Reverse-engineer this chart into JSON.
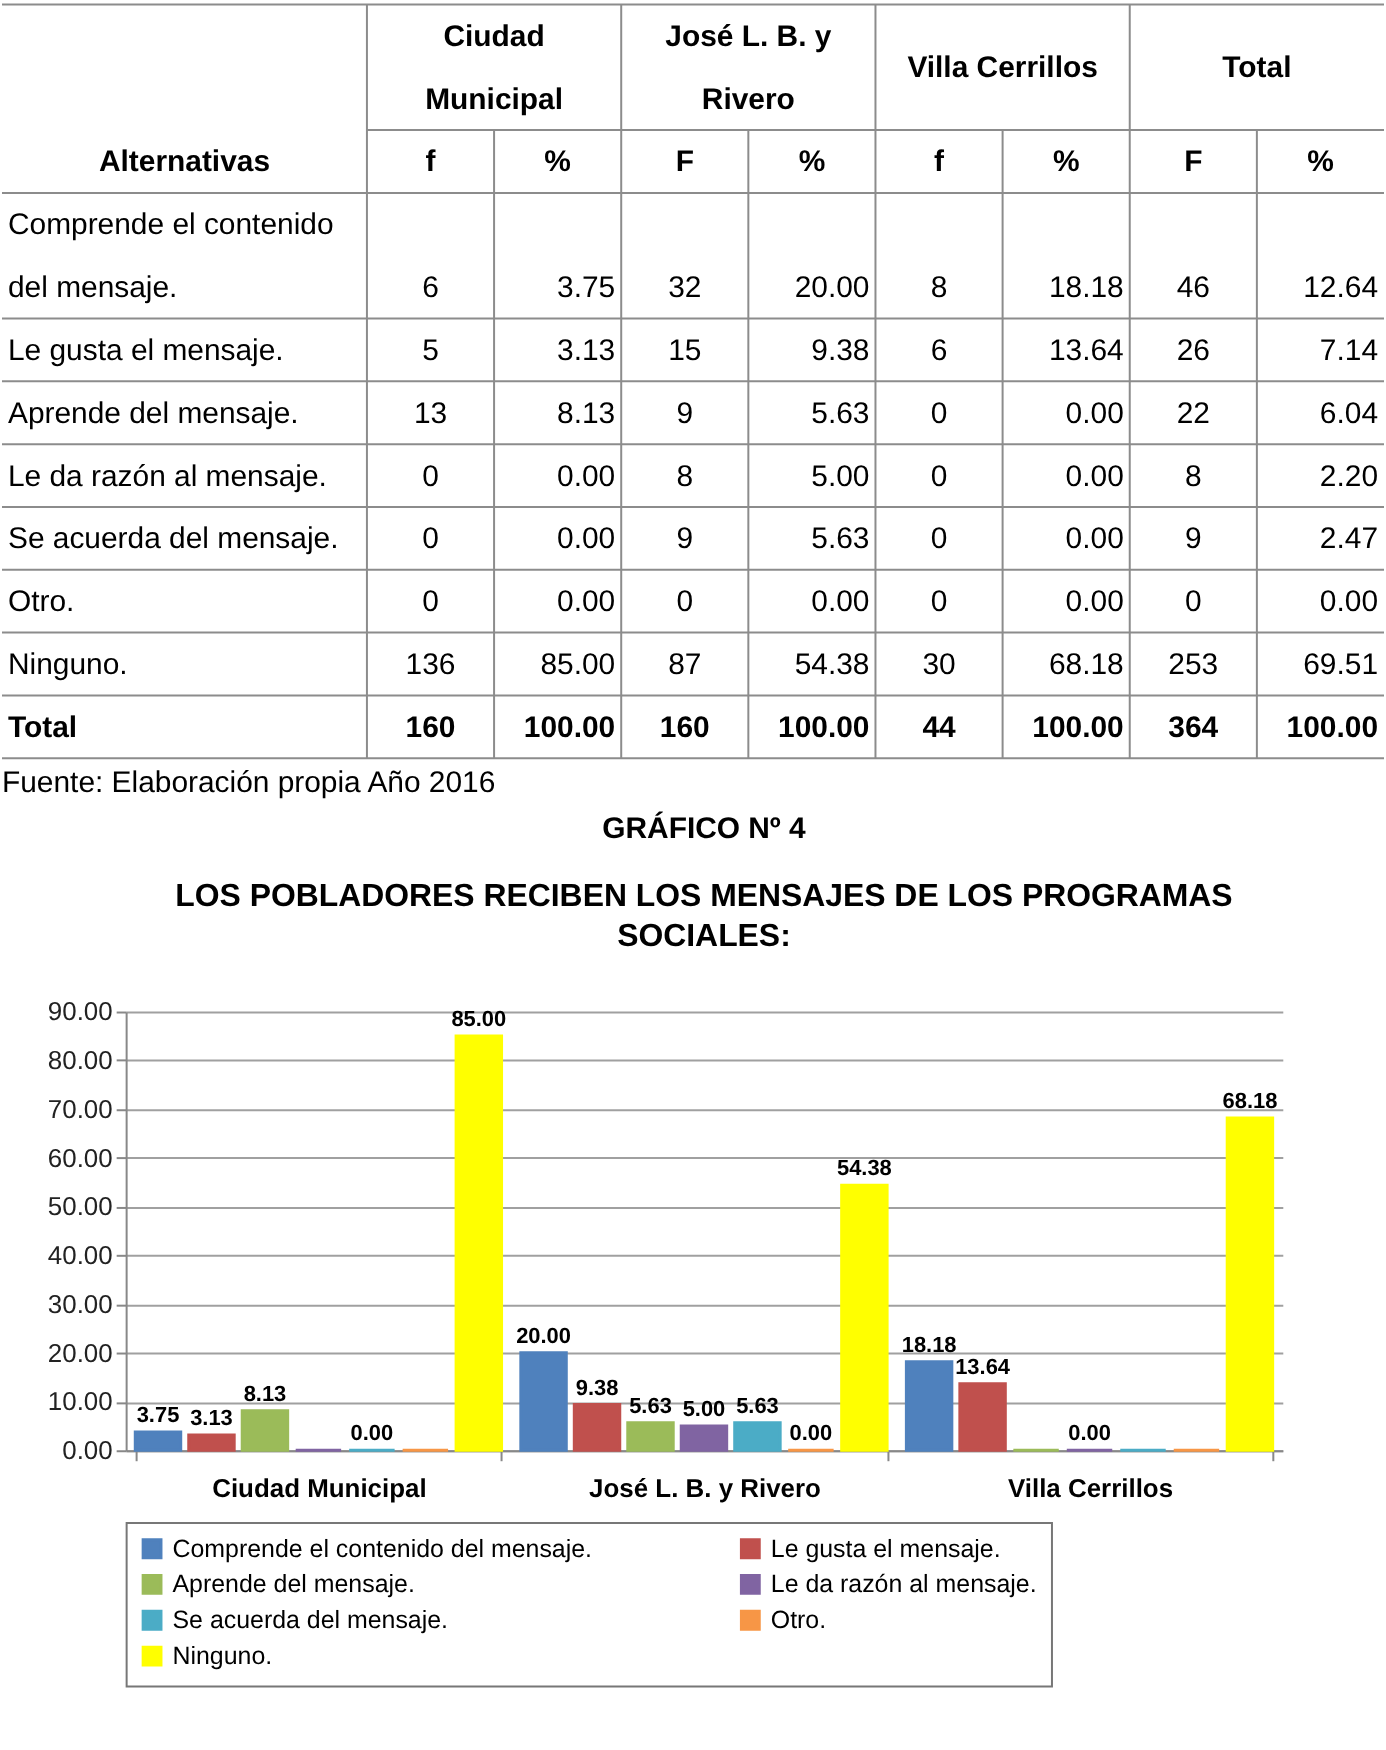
{
  "chart_data": [
    {
      "type": "heatmap",
      "ylabel": "Alternativas",
      "categories": [
        "f",
        "%",
        "F",
        "%",
        "f",
        "%",
        "F",
        "%"
      ],
      "y_categories": [
        "Comprende el contenido del mensaje.",
        "Le gusta el mensaje.",
        "Aprende del mensaje.",
        "Le da razón al mensaje.",
        "Se acuerda del mensaje.",
        "Otro.",
        "Ninguno.",
        "Total"
      ],
      "cells": [
        [
          6,
          3.75,
          32,
          20.0,
          8,
          18.18,
          46,
          12.64
        ],
        [
          5,
          3.13,
          15,
          9.38,
          6,
          13.64,
          26,
          7.14
        ],
        [
          13,
          8.13,
          9,
          5.63,
          0,
          0.0,
          22,
          6.04
        ],
        [
          0,
          0.0,
          8,
          5.0,
          0,
          0.0,
          8,
          2.2
        ],
        [
          0,
          0.0,
          9,
          5.63,
          0,
          0.0,
          9,
          2.47
        ],
        [
          0,
          0.0,
          0,
          0.0,
          0,
          0.0,
          0,
          0.0
        ],
        [
          136,
          85.0,
          87,
          54.38,
          30,
          68.18,
          253,
          69.51
        ],
        [
          160,
          100.0,
          160,
          100.0,
          44,
          100.0,
          364,
          100.0
        ]
      ],
      "cell_labels": [
        [
          "6",
          "3.75",
          "32",
          "20.00",
          "8",
          "18.18",
          "46",
          "12.64"
        ],
        [
          "5",
          "3.13",
          "15",
          "9.38",
          "6",
          "13.64",
          "26",
          "7.14"
        ],
        [
          "13",
          "8.13",
          "9",
          "5.63",
          "0",
          "0.00",
          "22",
          "6.04"
        ],
        [
          "0",
          "0.00",
          "8",
          "5.00",
          "0",
          "0.00",
          "8",
          "2.20"
        ],
        [
          "0",
          "0.00",
          "9",
          "5.63",
          "0",
          "0.00",
          "9",
          "2.47"
        ],
        [
          "0",
          "0.00",
          "0",
          "0.00",
          "0",
          "0.00",
          "0",
          "0.00"
        ],
        [
          "136",
          "85.00",
          "87",
          "54.38",
          "30",
          "68.18",
          "253",
          "69.51"
        ],
        [
          "160",
          "100.00",
          "160",
          "100.00",
          "44",
          "100.00",
          "364",
          "100.00"
        ]
      ],
      "annotations": [
        "Ciudad Municipal",
        "José L. B. y Rivero",
        "Villa Cerrillos",
        "Total",
        "Fuente: Elaboración propia Año 2016"
      ]
    },
    {
      "type": "bar",
      "title": "GRÁFICO Nº 4",
      "subtitle": "LOS POBLADORES RECIBEN LOS MENSAJES  DE LOS PROGRAMAS SOCIALES:",
      "categories": [
        "Ciudad Municipal",
        "José L. B. y Rivero",
        "Villa Cerrillos"
      ],
      "series": [
        {
          "name": "Comprende el contenido del mensaje.",
          "color": "#4f81bd",
          "values": [
            3.75,
            20.0,
            18.18
          ],
          "value_labels": [
            "3.75",
            "20.00",
            "18.18"
          ]
        },
        {
          "name": "Le gusta el mensaje.",
          "color": "#c0504d",
          "values": [
            3.13,
            9.38,
            13.64
          ],
          "value_labels": [
            "3.13",
            "9.38",
            "13.64"
          ]
        },
        {
          "name": "Aprende del mensaje.",
          "color": "#9bbb59",
          "values": [
            8.13,
            5.63,
            0.0
          ],
          "value_labels": [
            "8.13",
            "5.63",
            null
          ]
        },
        {
          "name": "Le da razón al mensaje.",
          "color": "#8064a2",
          "values": [
            0.0,
            5.0,
            0.0
          ],
          "value_labels": [
            null,
            "5.00",
            "0.00"
          ]
        },
        {
          "name": "Se acuerda del mensaje.",
          "color": "#4bacc6",
          "values": [
            0.0,
            5.63,
            0.0
          ],
          "value_labels": [
            "0.00",
            "5.63",
            null
          ]
        },
        {
          "name": "Otro.",
          "color": "#f79646",
          "values": [
            0.0,
            0.0,
            0.0
          ],
          "value_labels": [
            null,
            "0.00",
            null
          ]
        },
        {
          "name": "Ninguno.",
          "color": "#ffff00",
          "values": [
            85.0,
            54.38,
            68.18
          ],
          "value_labels": [
            "85.00",
            "54.38",
            "68.18"
          ]
        }
      ],
      "ylim": [
        0,
        90
      ],
      "yticks": [
        {
          "value": 0,
          "label": "0.00"
        },
        {
          "value": 10,
          "label": "10.00"
        },
        {
          "value": 20,
          "label": "20.00"
        },
        {
          "value": 30,
          "label": "30.00"
        },
        {
          "value": 40,
          "label": "40.00"
        },
        {
          "value": 50,
          "label": "50.00"
        },
        {
          "value": 60,
          "label": "60.00"
        },
        {
          "value": 70,
          "label": "70.00"
        },
        {
          "value": 80,
          "label": "80.00"
        },
        {
          "value": 90,
          "label": "90.00"
        }
      ],
      "grid": "y",
      "legend": "bottom"
    }
  ]
}
